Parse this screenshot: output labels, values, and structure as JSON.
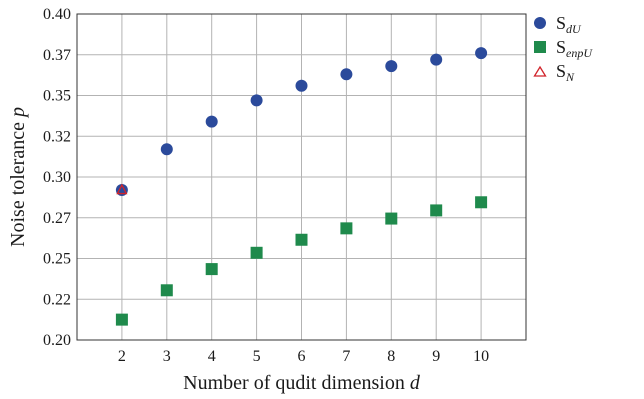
{
  "chart_data": {
    "type": "scatter",
    "x": [
      2,
      3,
      4,
      5,
      6,
      7,
      8,
      9,
      10
    ],
    "xlim": [
      1,
      11
    ],
    "ylim": [
      0.2,
      0.4
    ],
    "xticks": [
      "2",
      "3",
      "4",
      "5",
      "6",
      "7",
      "8",
      "9",
      "10"
    ],
    "yticks": [
      {
        "value": 0.2,
        "label": "0.20"
      },
      {
        "value": 0.225,
        "label": "0.22"
      },
      {
        "value": 0.25,
        "label": "0.25"
      },
      {
        "value": 0.275,
        "label": "0.27"
      },
      {
        "value": 0.3,
        "label": "0.30"
      },
      {
        "value": 0.325,
        "label": "0.32"
      },
      {
        "value": 0.35,
        "label": "0.35"
      },
      {
        "value": 0.375,
        "label": "0.37"
      },
      {
        "value": 0.4,
        "label": "0.40"
      }
    ],
    "xlabel": {
      "text": "Number of qudit dimension ",
      "var": "d"
    },
    "ylabel": {
      "text": "Noise tolerance ",
      "var": "p"
    },
    "grid": true,
    "legend_position": "outside-top-right",
    "series": [
      {
        "name": "S",
        "subscript": "dU",
        "marker": "circle",
        "color": "#2b4a9b",
        "x": [
          2,
          3,
          4,
          5,
          6,
          7,
          8,
          9,
          10
        ],
        "values": [
          0.292,
          0.317,
          0.334,
          0.347,
          0.356,
          0.363,
          0.368,
          0.372,
          0.376
        ]
      },
      {
        "name": "S",
        "subscript": "enpU",
        "marker": "square",
        "color": "#1f8a4c",
        "x": [
          2,
          3,
          4,
          5,
          6,
          7,
          8,
          9,
          10
        ],
        "values": [
          0.2125,
          0.2305,
          0.2435,
          0.2535,
          0.2615,
          0.2685,
          0.2745,
          0.2795,
          0.2845
        ]
      },
      {
        "name": "S",
        "subscript": "N",
        "marker": "triangle-open",
        "color": "#d1232a",
        "x": [
          2
        ],
        "values": [
          0.292
        ]
      }
    ]
  }
}
